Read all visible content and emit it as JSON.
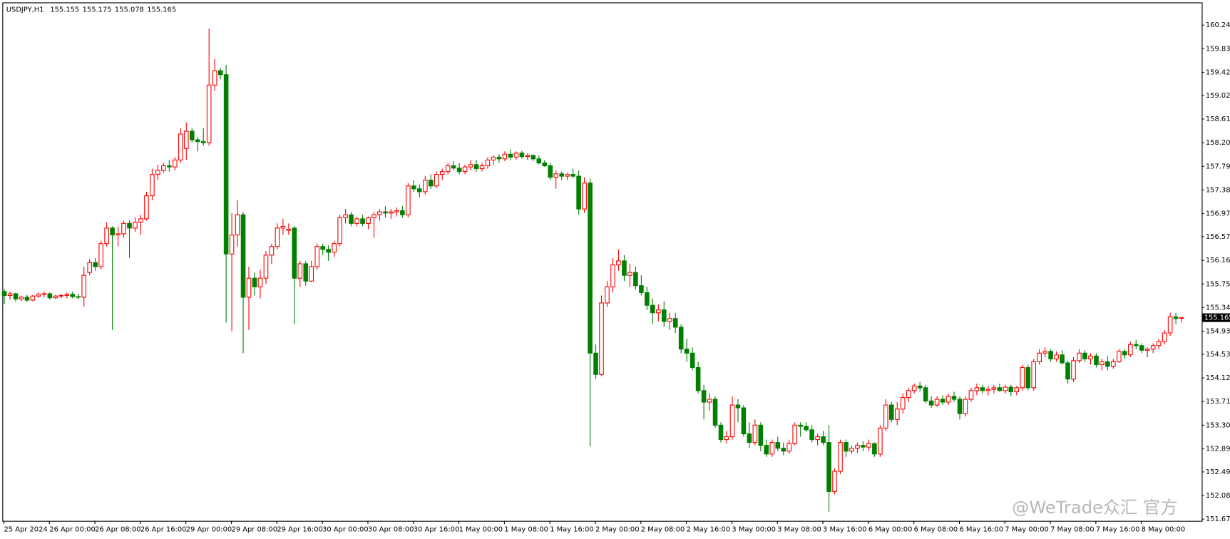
{
  "chart_data": {
    "type": "candlestick",
    "title": "USDJPY,H1",
    "watermark": "@WeTrade众汇 官方",
    "up_color": "#ff0000",
    "down_color": "#008000",
    "ylim": [
      151.64,
      160.62
    ],
    "yticks": [
      {
        "value": 160.24,
        "label": "160.240"
      },
      {
        "value": 159.83,
        "label": "159.830"
      },
      {
        "value": 159.42,
        "label": "159.420"
      },
      {
        "value": 159.02,
        "label": "159.020"
      },
      {
        "value": 158.61,
        "label": "158.610"
      },
      {
        "value": 158.2,
        "label": "158.200"
      },
      {
        "value": 157.79,
        "label": "157.790"
      },
      {
        "value": 157.38,
        "label": "157.380"
      },
      {
        "value": 156.97,
        "label": "156.970"
      },
      {
        "value": 156.57,
        "label": "156.570"
      },
      {
        "value": 156.16,
        "label": "156.160"
      },
      {
        "value": 155.75,
        "label": "155.750"
      },
      {
        "value": 155.34,
        "label": "155.340"
      },
      {
        "value": 154.93,
        "label": "154.930"
      },
      {
        "value": 154.53,
        "label": "154.530"
      },
      {
        "value": 154.12,
        "label": "154.120"
      },
      {
        "value": 153.71,
        "label": "153.710"
      },
      {
        "value": 153.3,
        "label": "153.300"
      },
      {
        "value": 152.89,
        "label": "152.890"
      },
      {
        "value": 152.49,
        "label": "152.490"
      },
      {
        "value": 152.08,
        "label": "152.080"
      },
      {
        "value": 151.67,
        "label": "151.670"
      }
    ],
    "xticks": [
      {
        "value": 0,
        "label": "25 Apr 2024"
      },
      {
        "value": 8,
        "label": "26 Apr 00:00"
      },
      {
        "value": 16,
        "label": "26 Apr 08:00"
      },
      {
        "value": 24,
        "label": "26 Apr 16:00"
      },
      {
        "value": 32,
        "label": "29 Apr 00:00"
      },
      {
        "value": 40,
        "label": "29 Apr 08:00"
      },
      {
        "value": 48,
        "label": "29 Apr 16:00"
      },
      {
        "value": 56,
        "label": "30 Apr 00:00"
      },
      {
        "value": 64,
        "label": "30 Apr 08:00"
      },
      {
        "value": 72,
        "label": "30 Apr 16:00"
      },
      {
        "value": 80,
        "label": "1 May 00:00"
      },
      {
        "value": 88,
        "label": "1 May 08:00"
      },
      {
        "value": 96,
        "label": "1 May 16:00"
      },
      {
        "value": 104,
        "label": "2 May 00:00"
      },
      {
        "value": 112,
        "label": "2 May 08:00"
      },
      {
        "value": 120,
        "label": "2 May 16:00"
      },
      {
        "value": 128,
        "label": "3 May 00:00"
      },
      {
        "value": 136,
        "label": "3 May 08:00"
      },
      {
        "value": 144,
        "label": "3 May 16:00"
      },
      {
        "value": 152,
        "label": "6 May 00:00"
      },
      {
        "value": 160,
        "label": "6 May 08:00"
      },
      {
        "value": 168,
        "label": "6 May 16:00"
      },
      {
        "value": 176,
        "label": "7 May 00:00"
      },
      {
        "value": 184,
        "label": "7 May 08:00"
      },
      {
        "value": 192,
        "label": "7 May 16:00"
      },
      {
        "value": 200,
        "label": "8 May 00:00"
      }
    ],
    "candles": [
      [
        155.62,
        155.66,
        155.4,
        155.55
      ],
      [
        155.55,
        155.62,
        155.48,
        155.58
      ],
      [
        155.58,
        155.6,
        155.44,
        155.49
      ],
      [
        155.49,
        155.55,
        155.45,
        155.52
      ],
      [
        155.52,
        155.56,
        155.44,
        155.47
      ],
      [
        155.47,
        155.56,
        155.45,
        155.54
      ],
      [
        155.54,
        155.6,
        155.51,
        155.57
      ],
      [
        155.57,
        155.62,
        155.52,
        155.58
      ],
      [
        155.58,
        155.6,
        155.48,
        155.51
      ],
      [
        155.51,
        155.56,
        155.49,
        155.54
      ],
      [
        155.54,
        155.58,
        155.5,
        155.55
      ],
      [
        155.55,
        155.6,
        155.5,
        155.57
      ],
      [
        155.57,
        155.62,
        155.5,
        155.53
      ],
      [
        155.53,
        155.58,
        155.48,
        155.52
      ],
      [
        155.52,
        156.05,
        155.35,
        155.9
      ],
      [
        155.95,
        156.18,
        155.9,
        156.12
      ],
      [
        156.12,
        156.2,
        155.98,
        156.05
      ],
      [
        156.05,
        156.5,
        156.0,
        156.45
      ],
      [
        156.45,
        156.82,
        156.4,
        156.72
      ],
      [
        156.72,
        156.75,
        154.95,
        156.6
      ],
      [
        156.6,
        156.75,
        156.4,
        156.62
      ],
      [
        156.62,
        156.85,
        156.55,
        156.8
      ],
      [
        156.8,
        156.85,
        156.2,
        156.72
      ],
      [
        156.72,
        156.9,
        156.65,
        156.82
      ],
      [
        156.82,
        156.95,
        156.6,
        156.88
      ],
      [
        156.88,
        157.35,
        156.85,
        157.28
      ],
      [
        157.28,
        157.75,
        157.2,
        157.65
      ],
      [
        157.65,
        157.82,
        157.55,
        157.72
      ],
      [
        157.72,
        157.85,
        157.68,
        157.8
      ],
      [
        157.8,
        157.9,
        157.7,
        157.78
      ],
      [
        157.78,
        157.95,
        157.72,
        157.9
      ],
      [
        157.9,
        158.45,
        157.85,
        158.35
      ],
      [
        158.1,
        158.55,
        157.9,
        158.4
      ],
      [
        158.4,
        158.45,
        158.2,
        158.25
      ],
      [
        158.25,
        158.3,
        158.05,
        158.22
      ],
      [
        158.22,
        158.45,
        158.15,
        158.2
      ],
      [
        158.2,
        160.18,
        158.15,
        159.2
      ],
      [
        159.2,
        159.65,
        159.1,
        159.45
      ],
      [
        159.45,
        159.5,
        159.3,
        159.38
      ],
      [
        159.38,
        159.55,
        155.08,
        156.27
      ],
      [
        156.27,
        156.98,
        154.93,
        156.6
      ],
      [
        156.6,
        157.2,
        156.4,
        156.95
      ],
      [
        156.95,
        157.0,
        154.55,
        155.52
      ],
      [
        155.52,
        156.05,
        154.95,
        155.85
      ],
      [
        155.85,
        155.95,
        155.55,
        155.7
      ],
      [
        155.7,
        156.0,
        155.5,
        155.85
      ],
      [
        155.85,
        156.32,
        155.75,
        156.25
      ],
      [
        156.25,
        156.45,
        156.1,
        156.4
      ],
      [
        156.4,
        156.8,
        156.35,
        156.72
      ],
      [
        156.72,
        156.88,
        156.6,
        156.75
      ],
      [
        156.68,
        156.8,
        156.6,
        156.7
      ],
      [
        156.72,
        156.75,
        155.05,
        155.85
      ],
      [
        155.85,
        156.15,
        155.7,
        156.1
      ],
      [
        156.1,
        156.15,
        155.72,
        155.8
      ],
      [
        155.8,
        156.15,
        155.78,
        156.05
      ],
      [
        156.05,
        156.45,
        156.0,
        156.4
      ],
      [
        156.4,
        156.45,
        156.25,
        156.35
      ],
      [
        156.35,
        156.42,
        156.15,
        156.3
      ],
      [
        156.3,
        156.5,
        156.22,
        156.45
      ],
      [
        156.45,
        156.95,
        156.4,
        156.9
      ],
      [
        156.9,
        157.05,
        156.8,
        156.95
      ],
      [
        156.95,
        157.0,
        156.75,
        156.8
      ],
      [
        156.8,
        156.92,
        156.75,
        156.88
      ],
      [
        156.88,
        156.95,
        156.75,
        156.8
      ],
      [
        156.8,
        156.92,
        156.7,
        156.9
      ],
      [
        156.9,
        157.0,
        156.55,
        156.95
      ],
      [
        156.95,
        157.05,
        156.85,
        157.0
      ],
      [
        157.0,
        157.1,
        156.9,
        156.98
      ],
      [
        156.98,
        157.05,
        156.88,
        157.0
      ],
      [
        157.0,
        157.08,
        156.92,
        157.02
      ],
      [
        157.02,
        157.1,
        156.9,
        156.95
      ],
      [
        156.95,
        157.5,
        156.9,
        157.45
      ],
      [
        157.45,
        157.55,
        157.35,
        157.4
      ],
      [
        157.4,
        157.48,
        157.25,
        157.35
      ],
      [
        157.35,
        157.62,
        157.3,
        157.55
      ],
      [
        157.55,
        157.65,
        157.4,
        157.45
      ],
      [
        157.45,
        157.7,
        157.42,
        157.65
      ],
      [
        157.65,
        157.75,
        157.55,
        157.7
      ],
      [
        157.7,
        157.85,
        157.65,
        157.8
      ],
      [
        157.8,
        157.88,
        157.72,
        157.76
      ],
      [
        157.76,
        157.85,
        157.65,
        157.7
      ],
      [
        157.7,
        157.82,
        157.65,
        157.78
      ],
      [
        157.78,
        157.9,
        157.72,
        157.82
      ],
      [
        157.82,
        157.9,
        157.7,
        157.75
      ],
      [
        157.75,
        157.85,
        157.7,
        157.8
      ],
      [
        157.8,
        157.95,
        157.75,
        157.9
      ],
      [
        157.9,
        157.98,
        157.82,
        157.95
      ],
      [
        157.95,
        158.0,
        157.85,
        157.92
      ],
      [
        157.92,
        158.05,
        157.88,
        158.0
      ],
      [
        158.0,
        158.08,
        157.9,
        157.95
      ],
      [
        157.95,
        158.05,
        157.9,
        158.02
      ],
      [
        158.02,
        158.06,
        157.92,
        157.96
      ],
      [
        157.96,
        158.02,
        157.9,
        157.98
      ],
      [
        157.98,
        158.0,
        157.88,
        157.92
      ],
      [
        157.92,
        157.98,
        157.82,
        157.85
      ],
      [
        157.85,
        157.9,
        157.78,
        157.8
      ],
      [
        157.8,
        157.85,
        157.55,
        157.6
      ],
      [
        157.6,
        157.72,
        157.4,
        157.66
      ],
      [
        157.66,
        157.7,
        157.55,
        157.62
      ],
      [
        157.62,
        157.68,
        157.55,
        157.65
      ],
      [
        157.65,
        157.75,
        157.58,
        157.62
      ],
      [
        157.62,
        157.72,
        156.95,
        157.05
      ],
      [
        157.05,
        157.6,
        156.98,
        157.5
      ],
      [
        157.5,
        157.58,
        152.93,
        154.55
      ],
      [
        154.55,
        154.7,
        154.1,
        154.18
      ],
      [
        154.18,
        155.55,
        154.15,
        155.42
      ],
      [
        155.42,
        155.8,
        155.35,
        155.7
      ],
      [
        155.7,
        156.2,
        155.6,
        156.08
      ],
      [
        156.08,
        156.35,
        155.98,
        156.15
      ],
      [
        156.15,
        156.25,
        155.8,
        155.9
      ],
      [
        155.9,
        156.1,
        155.7,
        155.95
      ],
      [
        155.95,
        156.05,
        155.65,
        155.72
      ],
      [
        155.72,
        155.9,
        155.55,
        155.6
      ],
      [
        155.6,
        155.7,
        155.3,
        155.38
      ],
      [
        155.38,
        155.5,
        155.05,
        155.25
      ],
      [
        155.25,
        155.4,
        155.1,
        155.3
      ],
      [
        155.3,
        155.45,
        155.0,
        155.1
      ],
      [
        155.1,
        155.25,
        154.95,
        155.15
      ],
      [
        155.15,
        155.25,
        154.9,
        155.0
      ],
      [
        155.0,
        155.05,
        154.55,
        154.62
      ],
      [
        154.62,
        154.8,
        154.4,
        154.55
      ],
      [
        154.55,
        154.65,
        154.25,
        154.3
      ],
      [
        154.3,
        154.4,
        153.85,
        153.9
      ],
      [
        153.9,
        154.0,
        153.4,
        153.7
      ],
      [
        153.7,
        153.85,
        153.55,
        153.75
      ],
      [
        153.75,
        153.8,
        153.25,
        153.3
      ],
      [
        153.3,
        153.35,
        153.0,
        153.05
      ],
      [
        153.05,
        153.2,
        152.98,
        153.1
      ],
      [
        153.1,
        153.8,
        153.05,
        153.65
      ],
      [
        153.65,
        153.75,
        153.35,
        153.6
      ],
      [
        153.6,
        153.65,
        153.1,
        153.15
      ],
      [
        153.15,
        153.35,
        152.9,
        153.0
      ],
      [
        153.0,
        153.4,
        152.95,
        153.3
      ],
      [
        153.3,
        153.35,
        152.85,
        152.95
      ],
      [
        152.95,
        153.05,
        152.75,
        152.8
      ],
      [
        152.8,
        153.05,
        152.75,
        153.0
      ],
      [
        153.0,
        153.1,
        152.85,
        152.9
      ],
      [
        152.9,
        153.0,
        152.78,
        152.85
      ],
      [
        152.85,
        153.05,
        152.8,
        152.98
      ],
      [
        152.98,
        153.35,
        152.95,
        153.3
      ],
      [
        153.3,
        153.35,
        153.1,
        153.28
      ],
      [
        153.28,
        153.35,
        153.18,
        153.22
      ],
      [
        153.22,
        153.3,
        153.0,
        153.05
      ],
      [
        153.05,
        153.15,
        152.95,
        153.1
      ],
      [
        153.1,
        153.2,
        152.95,
        153.0
      ],
      [
        153.0,
        153.3,
        151.8,
        152.15
      ],
      [
        152.15,
        152.55,
        152.1,
        152.5
      ],
      [
        152.5,
        153.05,
        152.45,
        153.0
      ],
      [
        153.0,
        153.05,
        152.75,
        152.85
      ],
      [
        152.85,
        152.95,
        152.8,
        152.9
      ],
      [
        152.9,
        153.0,
        152.82,
        152.95
      ],
      [
        152.95,
        153.02,
        152.85,
        152.92
      ],
      [
        152.92,
        153.05,
        152.85,
        152.98
      ],
      [
        152.98,
        153.0,
        152.75,
        152.8
      ],
      [
        152.8,
        153.3,
        152.75,
        153.25
      ],
      [
        153.25,
        153.75,
        153.2,
        153.65
      ],
      [
        153.65,
        153.7,
        153.35,
        153.4
      ],
      [
        153.4,
        153.7,
        153.3,
        153.58
      ],
      [
        153.58,
        153.85,
        153.5,
        153.78
      ],
      [
        153.78,
        153.95,
        153.7,
        153.9
      ],
      [
        153.9,
        154.02,
        153.85,
        153.98
      ],
      [
        153.98,
        154.05,
        153.88,
        153.95
      ],
      [
        153.95,
        154.0,
        153.68,
        153.72
      ],
      [
        153.72,
        153.8,
        153.6,
        153.65
      ],
      [
        153.65,
        153.8,
        153.62,
        153.75
      ],
      [
        153.75,
        153.82,
        153.65,
        153.7
      ],
      [
        153.7,
        153.85,
        153.65,
        153.8
      ],
      [
        153.8,
        153.88,
        153.7,
        153.75
      ],
      [
        153.75,
        153.8,
        153.4,
        153.5
      ],
      [
        153.5,
        153.8,
        153.45,
        153.75
      ],
      [
        153.75,
        153.95,
        153.7,
        153.9
      ],
      [
        153.9,
        154.02,
        153.82,
        153.95
      ],
      [
        153.95,
        154.0,
        153.85,
        153.9
      ],
      [
        153.9,
        153.98,
        153.82,
        153.92
      ],
      [
        153.92,
        154.0,
        153.85,
        153.95
      ],
      [
        153.95,
        154.02,
        153.88,
        153.9
      ],
      [
        153.9,
        154.0,
        153.85,
        153.96
      ],
      [
        153.96,
        154.0,
        153.8,
        153.88
      ],
      [
        153.88,
        153.98,
        153.82,
        153.95
      ],
      [
        153.95,
        154.35,
        153.9,
        154.3
      ],
      [
        154.3,
        154.35,
        153.9,
        153.95
      ],
      [
        153.95,
        154.45,
        153.9,
        154.4
      ],
      [
        154.4,
        154.62,
        154.35,
        154.55
      ],
      [
        154.55,
        154.65,
        154.48,
        154.58
      ],
      [
        154.58,
        154.62,
        154.4,
        154.45
      ],
      [
        154.45,
        154.58,
        154.4,
        154.52
      ],
      [
        154.52,
        154.6,
        154.35,
        154.38
      ],
      [
        154.38,
        154.42,
        154.02,
        154.1
      ],
      [
        154.1,
        154.48,
        154.05,
        154.42
      ],
      [
        154.42,
        154.62,
        154.38,
        154.55
      ],
      [
        154.55,
        154.6,
        154.4,
        154.45
      ],
      [
        154.45,
        154.55,
        154.35,
        154.5
      ],
      [
        154.5,
        154.55,
        154.3,
        154.35
      ],
      [
        154.35,
        154.45,
        154.25,
        154.4
      ],
      [
        154.4,
        154.5,
        154.25,
        154.32
      ],
      [
        154.32,
        154.45,
        154.28,
        154.4
      ],
      [
        154.4,
        154.62,
        154.38,
        154.58
      ],
      [
        154.58,
        154.62,
        154.45,
        154.52
      ],
      [
        154.52,
        154.75,
        154.48,
        154.7
      ],
      [
        154.7,
        154.78,
        154.62,
        154.68
      ],
      [
        154.68,
        154.72,
        154.55,
        154.6
      ],
      [
        154.6,
        154.65,
        154.48,
        154.62
      ],
      [
        154.62,
        154.72,
        154.55,
        154.68
      ],
      [
        154.68,
        154.8,
        154.62,
        154.75
      ],
      [
        154.75,
        154.95,
        154.7,
        154.9
      ],
      [
        154.9,
        155.25,
        154.85,
        155.18
      ],
      [
        155.18,
        155.25,
        155.05,
        155.15
      ],
      [
        155.155,
        155.175,
        155.078,
        155.165
      ]
    ]
  }
}
